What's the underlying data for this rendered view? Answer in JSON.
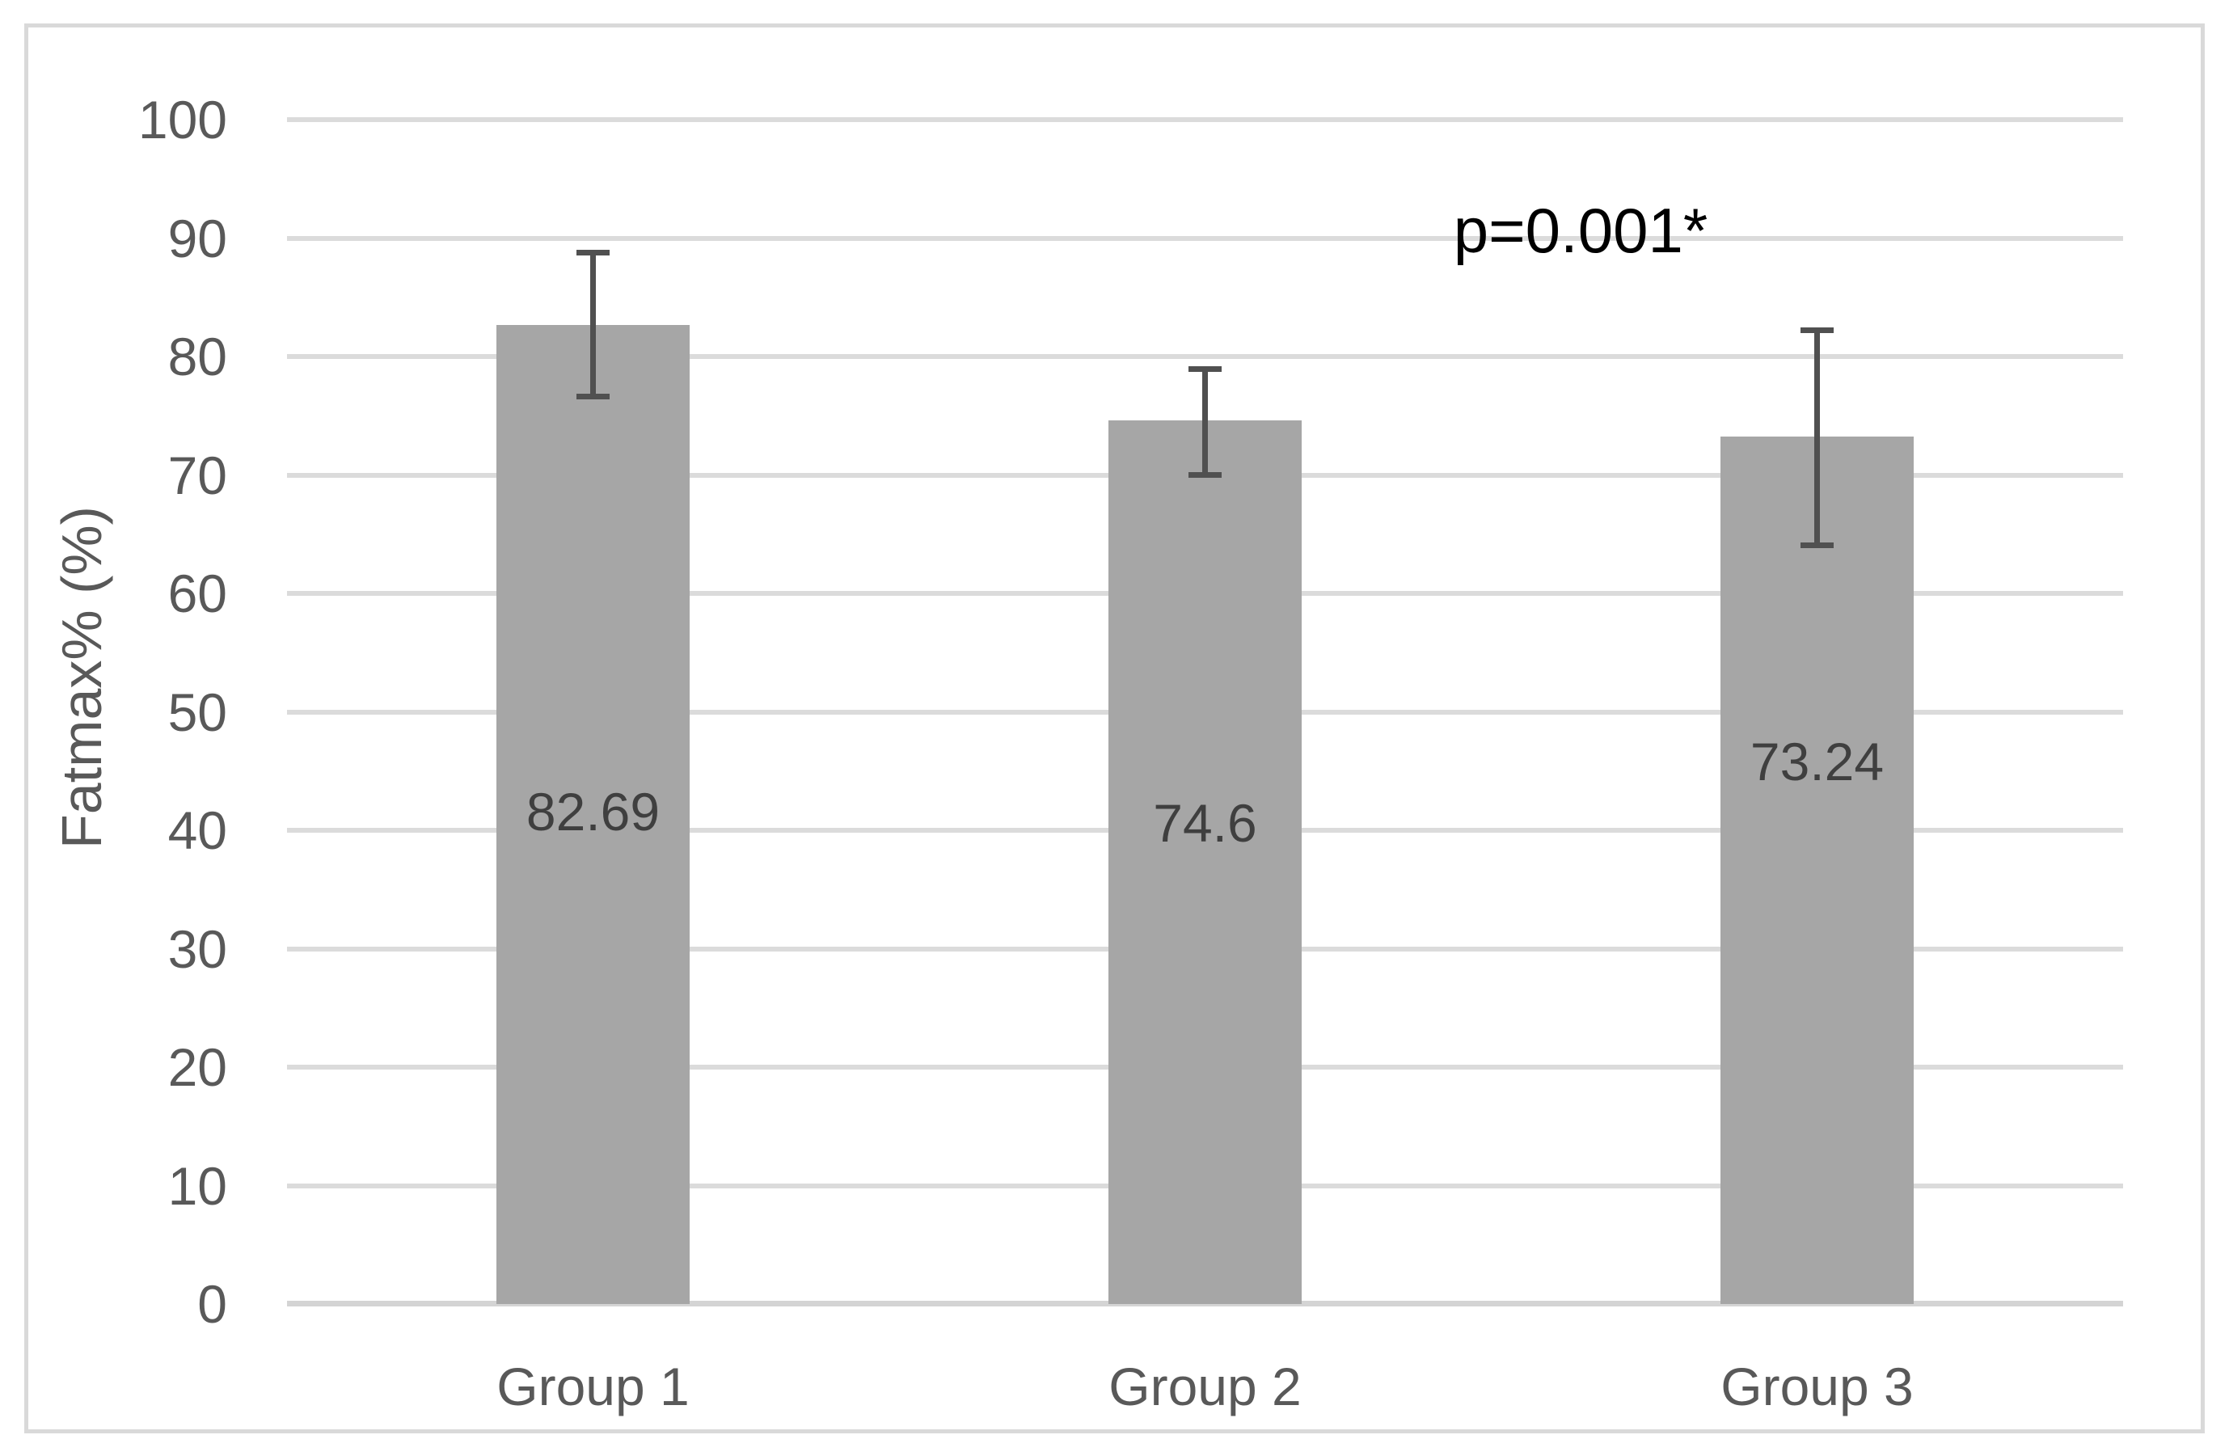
{
  "chart_data": {
    "type": "bar",
    "title": "",
    "xlabel": "",
    "ylabel": "Fatmax% (%)",
    "categories": [
      "Group 1",
      "Group 2",
      "Group 3"
    ],
    "series": [
      {
        "name": "Fatmax%",
        "values": [
          82.69,
          74.6,
          73.24
        ]
      }
    ],
    "data_labels": [
      "82.69",
      "74.6",
      "73.24"
    ],
    "error_bars": [
      {
        "plus": 6.1,
        "minus": 6.1
      },
      {
        "plus": 4.4,
        "minus": 4.6
      },
      {
        "plus": 9.0,
        "minus": 9.2
      }
    ],
    "annotation": "p=0.001*",
    "ylim": [
      0,
      100
    ],
    "yticks": [
      0,
      10,
      20,
      30,
      40,
      50,
      60,
      70,
      80,
      90,
      100
    ],
    "grid": true,
    "legend_position": "none",
    "label_y_values": [
      41.6,
      40.6,
      45.8
    ],
    "colors": {
      "background": "#ffffff",
      "figure_border": "#d9d9d9",
      "gridline": "#dbdbdb",
      "axis_line": "#d4d4d4",
      "bar": "#a6a6a6",
      "error_bar": "#505050",
      "tick_text": "#595959",
      "category_text": "#595959",
      "data_label_text": "#3f3f3f",
      "y_axis_title_text": "#595959",
      "annotation_text": "#000000"
    }
  }
}
